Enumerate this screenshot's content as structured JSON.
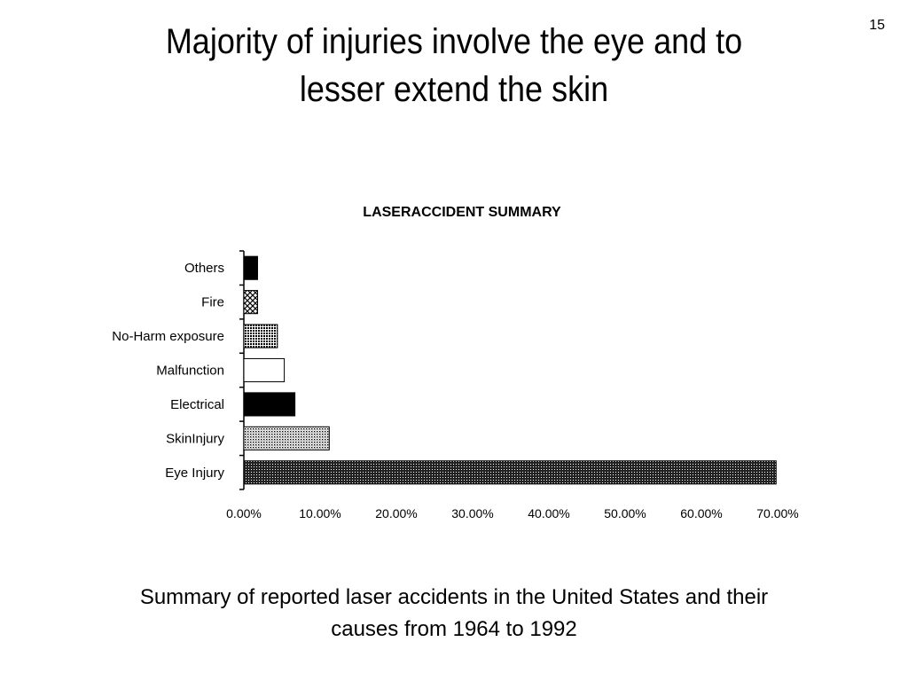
{
  "slide": {
    "number": "15",
    "title_line1": "Majority of injuries involve the eye and to",
    "title_line2": "lesser extend the skin",
    "caption_line1": "Summary of reported laser accidents in the United States and their",
    "caption_line2": "causes from 1964 to 1992"
  },
  "chart_data": {
    "type": "bar",
    "orientation": "horizontal",
    "title": "LASERACCIDENT SUMMARY",
    "categories": [
      "Others",
      "Fire",
      "No-Harm exposure",
      "Malfunction",
      "Electrical",
      "SkinInjury",
      "Eye Injury"
    ],
    "values": [
      1.8,
      1.8,
      4.4,
      5.3,
      6.7,
      11.2,
      69.8
    ],
    "value_unit": "%",
    "xlim": [
      0,
      70
    ],
    "xticks": [
      "0.00%",
      "10.00%",
      "20.00%",
      "30.00%",
      "40.00%",
      "50.00%",
      "60.00%",
      "70.00%"
    ],
    "fills": [
      "solid-black",
      "crosshatch",
      "dense-dots",
      "white",
      "solid-black",
      "light-dots",
      "dark-dots"
    ],
    "grid": false,
    "legend": "none"
  }
}
